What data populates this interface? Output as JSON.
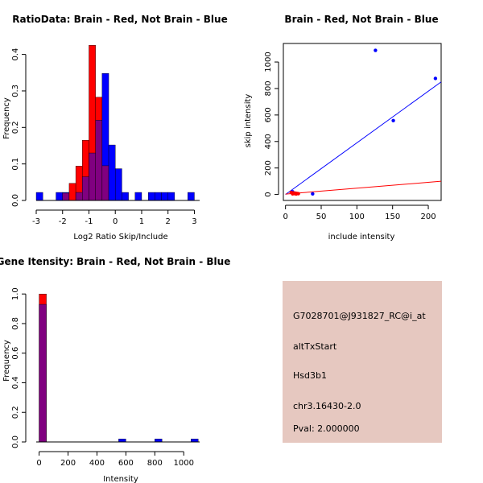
{
  "colors": {
    "brain": "#ff0000",
    "not_brain": "#0000ff",
    "overlap": "#800080",
    "info_bg": "#e6c8c0",
    "pval": "#b00000",
    "axis": "#000000"
  },
  "chart_data": [
    {
      "id": "ratio",
      "type": "bar",
      "title": "RatioData: Brain - Red, Not Brain - Blue",
      "xlabel": "Log2 Ratio Skip/Include",
      "ylabel": "Frequency",
      "xlim": [
        -3,
        3.2
      ],
      "ylim": [
        0,
        0.43
      ],
      "xticks": [
        -3,
        -2,
        -1,
        0,
        1,
        2,
        3
      ],
      "yticks": [
        0.0,
        0.1,
        0.2,
        0.3,
        0.4
      ],
      "bin_width": 0.25,
      "series": [
        {
          "name": "Brain",
          "color": "red",
          "bins": [
            [
              -2.0,
              0.02
            ],
            [
              -1.75,
              0.047
            ],
            [
              -1.5,
              0.094
            ],
            [
              -1.25,
              0.165
            ],
            [
              -1.0,
              0.425
            ],
            [
              -0.75,
              0.283
            ],
            [
              -0.5,
              0.095
            ],
            [
              -0.25,
              0.0
            ]
          ]
        },
        {
          "name": "Not Brain",
          "color": "blue",
          "bins": [
            [
              -3.0,
              0.022
            ],
            [
              -2.25,
              0.022
            ],
            [
              -2.0,
              0.022
            ],
            [
              -1.5,
              0.022
            ],
            [
              -1.25,
              0.065
            ],
            [
              -1.0,
              0.13
            ],
            [
              -0.75,
              0.22
            ],
            [
              -0.5,
              0.348
            ],
            [
              -0.25,
              0.152
            ],
            [
              0.0,
              0.087
            ],
            [
              0.25,
              0.022
            ],
            [
              0.75,
              0.022
            ],
            [
              1.25,
              0.022
            ],
            [
              1.5,
              0.022
            ],
            [
              1.75,
              0.022
            ],
            [
              2.0,
              0.022
            ],
            [
              2.75,
              0.022
            ]
          ]
        }
      ]
    },
    {
      "id": "scatter",
      "type": "scatter",
      "title": "Brain - Red, Not Brain - Blue",
      "xlabel": "include intensity",
      "ylabel": "skip intensity",
      "xlim": [
        -3,
        218
      ],
      "ylim": [
        -45,
        1140
      ],
      "xticks": [
        0,
        50,
        100,
        150,
        200
      ],
      "yticks": [
        0,
        200,
        400,
        600,
        800,
        1000
      ],
      "series": [
        {
          "name": "Not Brain",
          "color": "blue",
          "points": [
            [
              126,
              1088
            ],
            [
              210,
              876
            ],
            [
              151,
              558
            ],
            [
              38,
              5
            ],
            [
              10,
              20
            ],
            [
              12,
              10
            ],
            [
              14,
              8
            ]
          ],
          "fit": [
            [
              0,
              0
            ],
            [
              218,
              850
            ]
          ]
        },
        {
          "name": "Brain",
          "color": "red",
          "points": [
            [
              8,
              15
            ],
            [
              10,
              5
            ],
            [
              11,
              12
            ],
            [
              13,
              6
            ],
            [
              14,
              10
            ],
            [
              15,
              4
            ],
            [
              16,
              8
            ],
            [
              18,
              6
            ]
          ],
          "fit": [
            [
              0,
              3
            ],
            [
              218,
              100
            ]
          ]
        }
      ]
    },
    {
      "id": "intensity",
      "type": "bar",
      "title": "Gene Itensity: Brain - Red, Not Brain - Blue",
      "xlabel": "Intensity",
      "ylabel": "Frequency",
      "xlim": [
        -20,
        1110
      ],
      "ylim": [
        0,
        1.05
      ],
      "xticks": [
        0,
        200,
        400,
        600,
        800,
        1000
      ],
      "yticks": [
        0.0,
        0.2,
        0.4,
        0.6,
        0.8,
        1.0
      ],
      "bin_width": 50,
      "series": [
        {
          "name": "Brain",
          "color": "red",
          "bins": [
            [
              0,
              1.0
            ]
          ]
        },
        {
          "name": "Not Brain",
          "color": "blue",
          "bins": [
            [
              0,
              0.93
            ],
            [
              550,
              0.02
            ],
            [
              800,
              0.02
            ],
            [
              1050,
              0.02
            ]
          ]
        }
      ]
    }
  ],
  "info_panel": {
    "probe_id": "G7028701@J931827_RC@i_at",
    "event_type": "altTxStart",
    "gene": "Hsd3b1",
    "location": "chr3.16430-2.0",
    "pval": "Pval: 2.000000"
  }
}
